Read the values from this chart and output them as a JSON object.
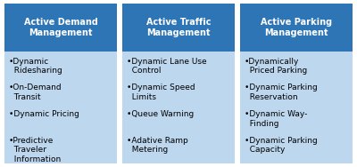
{
  "sections": [
    {
      "title": "Active Demand\nManagement",
      "items": [
        "•Dynamic\n  Ridesharing",
        "•On-Demand\n  Transit",
        "•Dynamic Pricing",
        "•Predictive\n  Traveler\n  Information"
      ]
    },
    {
      "title": "Active Traffic\nManagement",
      "items": [
        "•Dynamic Lane Use\n  Control",
        "•Dynamic Speed\n  Limits",
        "•Queue Warning",
        "•Adative Ramp\n  Metering"
      ]
    },
    {
      "title": "Active Parking\nManagement",
      "items": [
        "•Dynamically\n  Priced Parking",
        "•Dynamic Parking\n  Reservation",
        "•Dynamic Way-\n  Finding",
        "•Dynamic Parking\n  Capacity"
      ]
    }
  ],
  "header_bg_color": "#2E75B6",
  "header_text_color": "#FFFFFF",
  "body_bg_color": "#BDD7EE",
  "body_text_color": "#000000",
  "outer_bg_color": "#FFFFFF",
  "header_fontsize": 7.0,
  "body_fontsize": 6.5,
  "fig_width": 4.0,
  "fig_height": 1.88,
  "dpi": 100
}
